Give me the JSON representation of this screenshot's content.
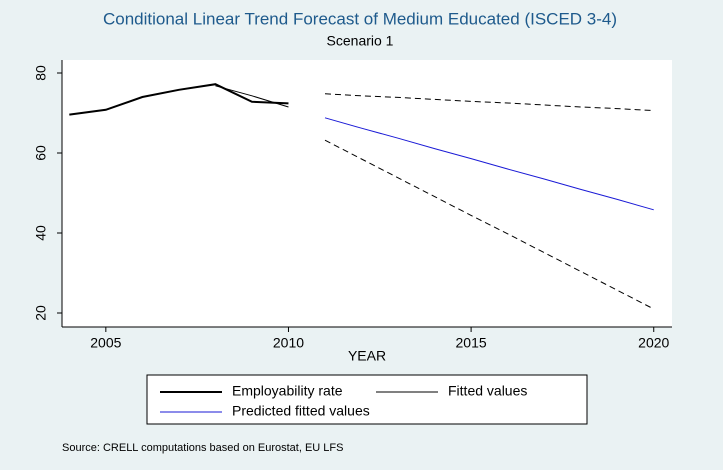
{
  "chart_data": {
    "type": "line",
    "title": "Conditional Linear Trend Forecast of Medium Educated (ISCED 3-4)",
    "subtitle": "Scenario 1",
    "x_label": "YEAR",
    "note": "Source: CRELL computations based on Eurostat, EU LFS",
    "x": [
      2004,
      2005,
      2006,
      2007,
      2008,
      2009,
      2010,
      2011,
      2012,
      2013,
      2014,
      2015,
      2016,
      2017,
      2018,
      2019,
      2020
    ],
    "xlim": [
      2003.8,
      2020.5
    ],
    "xticks": [
      2005,
      2010,
      2015,
      2020
    ],
    "ylim": [
      16.5,
      83.25
    ],
    "yticks": [
      20,
      40,
      60,
      80
    ],
    "series": [
      {
        "name": "Employability rate",
        "color": "#000000",
        "width": 2,
        "values": [
          69.6,
          70.8,
          74.0,
          75.8,
          77.2,
          72.8,
          72.4,
          null,
          null,
          null,
          null,
          null,
          null,
          null,
          null,
          null,
          null
        ]
      },
      {
        "name": "Fitted values",
        "color": "#000000",
        "width": 1,
        "values": [
          null,
          null,
          null,
          null,
          76.8,
          74.3,
          71.5,
          null,
          null,
          null,
          null,
          null,
          null,
          null,
          null,
          null,
          null
        ]
      },
      {
        "name": "Predicted fitted values",
        "color": "#1a1ad6",
        "width": 1,
        "values": [
          null,
          null,
          null,
          null,
          null,
          null,
          null,
          68.8,
          66.2,
          63.7,
          61.1,
          58.6,
          56.0,
          53.5,
          50.9,
          48.4,
          45.8
        ]
      },
      {
        "color": "#000000",
        "width": 1,
        "dashed": true,
        "values": [
          null,
          null,
          null,
          null,
          null,
          null,
          null,
          74.8,
          74.3,
          73.9,
          73.4,
          72.9,
          72.5,
          72.0,
          71.5,
          71.1,
          70.6
        ]
      },
      {
        "color": "#000000",
        "width": 1,
        "dashed": true,
        "values": [
          null,
          null,
          null,
          null,
          null,
          null,
          null,
          63.2,
          58.5,
          53.8,
          49.1,
          44.4,
          39.8,
          35.1,
          30.4,
          25.7,
          21.0
        ]
      }
    ]
  }
}
